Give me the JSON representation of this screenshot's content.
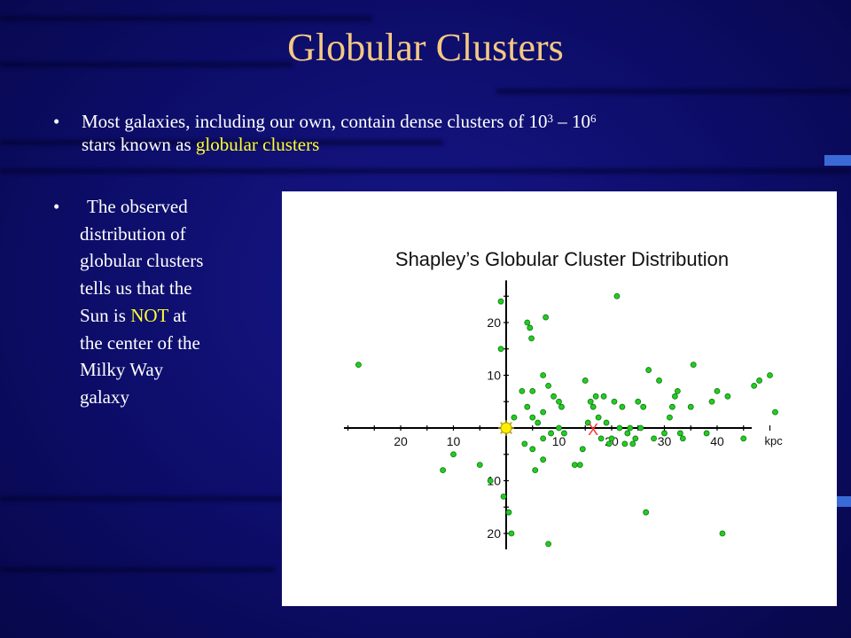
{
  "slide": {
    "title": "Globular Clusters",
    "bullet1": {
      "marker": "•",
      "text_before": "Most galaxies, including our own, contain dense clusters of 10",
      "sup1": "3",
      "dash": " – 10",
      "sup2": "6",
      "line2_before": "stars known as ",
      "highlight": "globular clusters"
    },
    "bullet2": {
      "marker": "•",
      "lines": [
        "The observed",
        "distribution of",
        "globular clusters",
        "tells us that the"
      ],
      "line5_before": "Sun is ",
      "line5_highlight": "NOT",
      "line5_after": " at",
      "lines_after": [
        "the center of the",
        "Milky Way",
        "galaxy"
      ]
    },
    "colors": {
      "title": "#f3c885",
      "highlight": "#ffff33",
      "point_fill": "#22cc22",
      "sun_fill": "#ffee00",
      "marker_x": "#ff3333"
    }
  },
  "chart_data": {
    "type": "scatter",
    "title": "Shapley’s Globular Cluster Distribution",
    "xlabel": "kpc",
    "ylabel": "",
    "x_tick_labels_left": [
      "20",
      "10"
    ],
    "x_tick_labels_right": [
      "10",
      "20",
      "30",
      "40"
    ],
    "y_tick_labels_up": [
      "20",
      "10"
    ],
    "y_tick_labels_down": [
      "10",
      "20"
    ],
    "xlim": [
      -30,
      50
    ],
    "ylim": [
      -23,
      28
    ],
    "sun": {
      "x": 0,
      "y": 0,
      "label_icon": "sun-icon"
    },
    "galactic_center_marker": {
      "x": 16.5,
      "y": 0,
      "symbol": "X"
    },
    "points": [
      [
        -28,
        12
      ],
      [
        -12,
        -8
      ],
      [
        -10,
        -5
      ],
      [
        -5,
        -7
      ],
      [
        -3,
        -10
      ],
      [
        -1,
        15
      ],
      [
        -1,
        24
      ],
      [
        -0.5,
        -13
      ],
      [
        0.5,
        -16
      ],
      [
        1,
        -20
      ],
      [
        1.5,
        2
      ],
      [
        3,
        7
      ],
      [
        3.5,
        -3
      ],
      [
        4,
        4
      ],
      [
        4,
        20
      ],
      [
        4.5,
        19
      ],
      [
        4.8,
        17
      ],
      [
        5,
        7
      ],
      [
        5,
        2
      ],
      [
        5,
        -4
      ],
      [
        5.5,
        -8
      ],
      [
        6,
        1
      ],
      [
        7,
        10
      ],
      [
        7,
        3
      ],
      [
        7,
        -2
      ],
      [
        7,
        -6
      ],
      [
        7.5,
        21
      ],
      [
        8,
        8
      ],
      [
        8,
        -22
      ],
      [
        8.5,
        -1
      ],
      [
        9,
        6
      ],
      [
        10,
        5
      ],
      [
        10,
        0
      ],
      [
        10.5,
        4
      ],
      [
        11,
        -1
      ],
      [
        13,
        -7
      ],
      [
        14,
        -7
      ],
      [
        14.5,
        -4
      ],
      [
        15,
        9
      ],
      [
        15.5,
        1
      ],
      [
        16,
        5
      ],
      [
        16.5,
        4
      ],
      [
        17,
        6
      ],
      [
        17.5,
        2
      ],
      [
        18,
        -2
      ],
      [
        18.5,
        6
      ],
      [
        19,
        1
      ],
      [
        19.5,
        -3
      ],
      [
        20,
        -2
      ],
      [
        20.5,
        5
      ],
      [
        21,
        25
      ],
      [
        21.5,
        0
      ],
      [
        22,
        4
      ],
      [
        22.5,
        -3
      ],
      [
        23,
        -1
      ],
      [
        23.5,
        0
      ],
      [
        24,
        -3
      ],
      [
        24.5,
        -2
      ],
      [
        25,
        5
      ],
      [
        25.5,
        0
      ],
      [
        26,
        4
      ],
      [
        26.5,
        -16
      ],
      [
        27,
        11
      ],
      [
        28,
        -2
      ],
      [
        29,
        9
      ],
      [
        30,
        -1
      ],
      [
        31,
        2
      ],
      [
        31.5,
        4
      ],
      [
        32,
        6
      ],
      [
        32.5,
        7
      ],
      [
        33,
        -1
      ],
      [
        33.5,
        -2
      ],
      [
        35,
        4
      ],
      [
        35.5,
        12
      ],
      [
        38,
        -1
      ],
      [
        39,
        5
      ],
      [
        40,
        7
      ],
      [
        41,
        -20
      ],
      [
        42,
        6
      ],
      [
        45,
        -2
      ],
      [
        47,
        8
      ],
      [
        48,
        9
      ],
      [
        50,
        10
      ],
      [
        51,
        3
      ]
    ]
  }
}
